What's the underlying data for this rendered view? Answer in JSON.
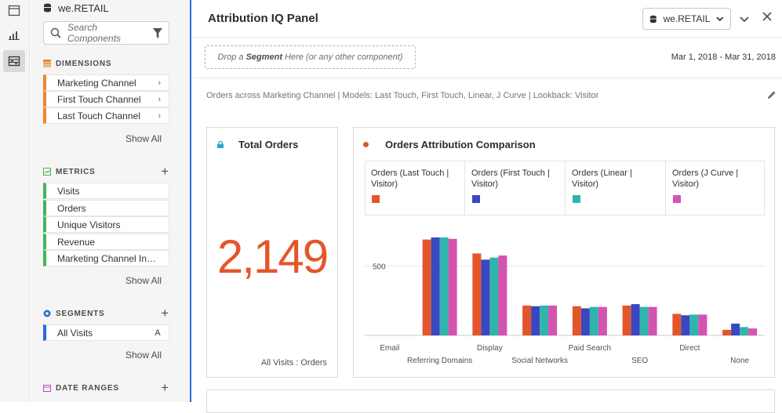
{
  "left_panel": {
    "datasource": "we.RETAIL",
    "search_placeholder": "Search Components",
    "dimensions": {
      "title": "DIMENSIONS",
      "items": [
        "Marketing Channel",
        "First Touch Channel",
        "Last Touch Channel"
      ],
      "show_all": "Show All"
    },
    "metrics": {
      "title": "METRICS",
      "items": [
        "Visits",
        "Orders",
        "Unique Visitors",
        "Revenue",
        "Marketing Channel Inst..."
      ],
      "show_all": "Show All"
    },
    "segments": {
      "title": "SEGMENTS",
      "items": [
        "All Visits"
      ],
      "show_all": "Show All"
    },
    "date_ranges": {
      "title": "DATE RANGES"
    }
  },
  "panel": {
    "title": "Attribution IQ Panel",
    "datasource": "we.RETAIL",
    "dropzone": {
      "pre": "Drop a",
      "bold": "Segment",
      "post": "Here (or any other component)"
    },
    "date_range": "Mar 1, 2018 - Mar 31, 2018",
    "description": "Orders across Marketing Channel | Models: Last Touch, First Touch, Linear, J Curve | Lookback: Visitor"
  },
  "kpi": {
    "title": "Total Orders",
    "value": "2,149",
    "footer": "All Visits : Orders"
  },
  "colors": {
    "accent": "#2d6bd6",
    "orange": "#e4562a",
    "blue": "#3b47c0",
    "teal": "#2fb5ad",
    "pink": "#d553b0"
  },
  "chart_data": {
    "type": "bar",
    "title": "Orders Attribution Comparison",
    "categories": [
      "Email",
      "Referring Domains",
      "Display",
      "Social Networks",
      "Paid Search",
      "SEO",
      "Direct",
      "None"
    ],
    "series": [
      {
        "name": "Orders (Last Touch | Visitor)",
        "color": "#e4562a",
        "values": [
          0,
          690,
          590,
          215,
          210,
          215,
          155,
          40
        ]
      },
      {
        "name": "Orders (First Touch | Visitor)",
        "color": "#3b47c0",
        "values": [
          0,
          705,
          545,
          210,
          195,
          225,
          145,
          85
        ]
      },
      {
        "name": "Orders (Linear | Visitor)",
        "color": "#2fb5ad",
        "values": [
          0,
          705,
          560,
          215,
          205,
          205,
          150,
          60
        ]
      },
      {
        "name": "Orders (J Curve | Visitor)",
        "color": "#d553b0",
        "values": [
          0,
          695,
          575,
          215,
          205,
          205,
          150,
          50
        ]
      }
    ],
    "ytick": 500,
    "ytick_label": "500",
    "ylim": [
      0,
      750
    ],
    "grid": true
  }
}
